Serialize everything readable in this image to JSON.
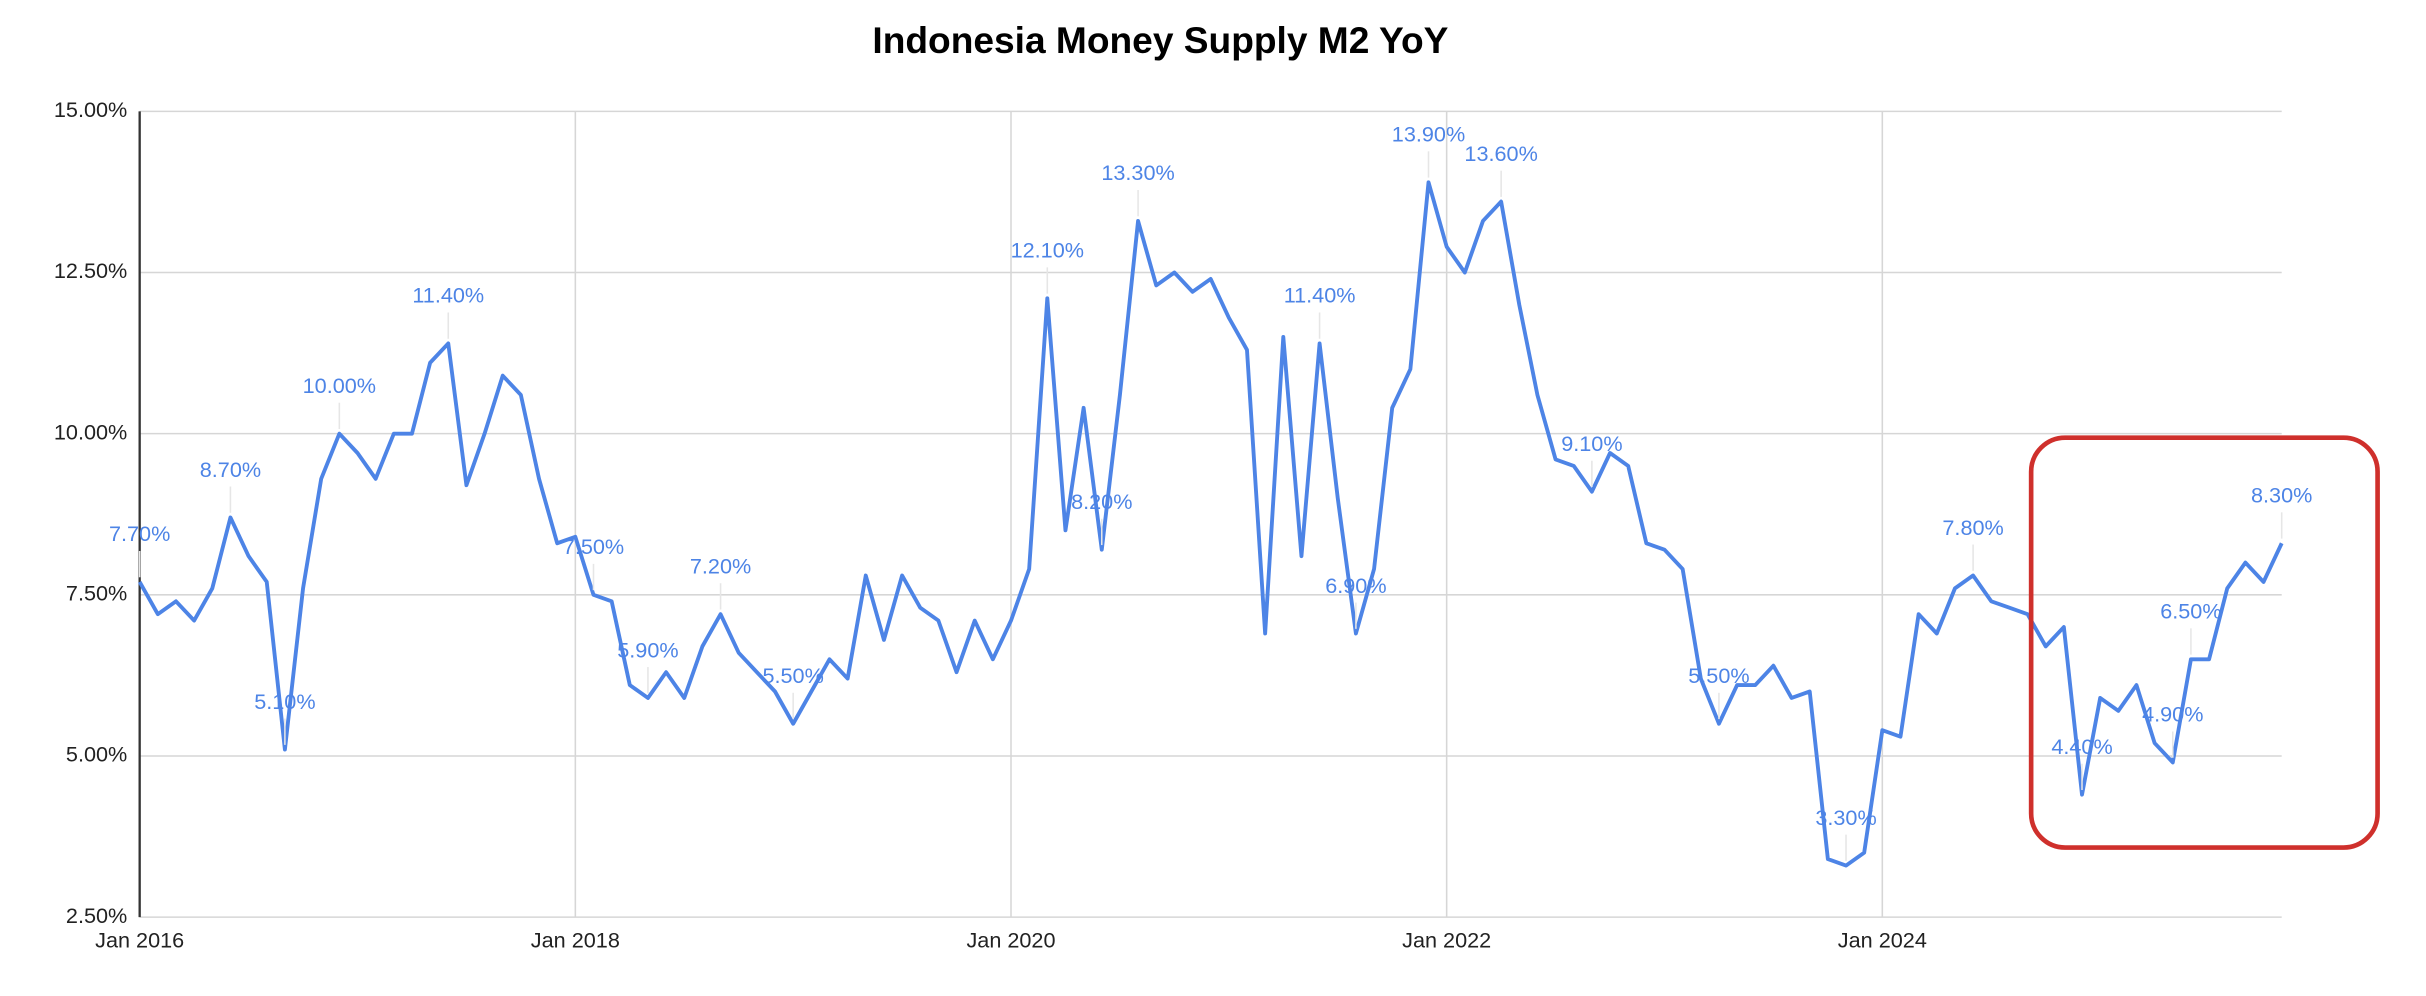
{
  "chart_data": {
    "type": "line",
    "title": "Indonesia Money Supply M2 YoY",
    "categories": [
      "Jan 2016",
      null,
      null,
      null,
      null,
      null,
      null,
      null,
      null,
      null,
      null,
      null,
      null,
      null,
      null,
      null,
      null,
      null,
      null,
      null,
      null,
      null,
      null,
      null,
      "Jan 2018",
      null,
      null,
      null,
      null,
      null,
      null,
      null,
      null,
      null,
      null,
      null,
      null,
      null,
      null,
      null,
      null,
      null,
      null,
      null,
      null,
      null,
      null,
      null,
      "Jan 2020",
      null,
      null,
      null,
      null,
      null,
      null,
      null,
      null,
      null,
      null,
      null,
      null,
      null,
      null,
      null,
      null,
      null,
      null,
      null,
      null,
      null,
      null,
      null,
      "Jan 2022",
      null,
      null,
      null,
      null,
      null,
      null,
      null,
      null,
      null,
      null,
      null,
      null,
      null,
      null,
      null,
      null,
      null,
      null,
      null,
      null,
      null,
      null,
      null,
      "Jan 2024",
      null,
      null,
      null,
      null,
      null,
      null,
      null,
      null,
      null,
      null,
      null,
      null,
      null,
      null,
      null,
      null,
      null,
      null,
      null,
      null,
      null,
      null
    ],
    "series": [
      {
        "name": "M2 YoY",
        "color": "#4d84e6",
        "values": [
          7.7,
          7.2,
          7.4,
          7.1,
          7.6,
          8.7,
          8.1,
          7.7,
          5.1,
          7.6,
          9.3,
          10.0,
          9.7,
          9.3,
          10.0,
          10.0,
          11.1,
          11.4,
          9.2,
          10.0,
          10.9,
          10.6,
          9.3,
          8.3,
          8.4,
          7.5,
          7.4,
          6.1,
          5.9,
          6.3,
          5.9,
          6.7,
          7.2,
          6.6,
          6.3,
          6.0,
          5.5,
          6.0,
          6.5,
          6.2,
          7.8,
          6.8,
          7.8,
          7.3,
          7.1,
          6.3,
          7.1,
          6.5,
          7.1,
          7.9,
          12.1,
          8.5,
          10.4,
          8.2,
          10.6,
          13.3,
          12.3,
          12.5,
          12.2,
          12.4,
          11.8,
          11.3,
          6.9,
          11.5,
          8.1,
          11.4,
          9.0,
          6.9,
          7.9,
          10.4,
          11.0,
          13.9,
          12.9,
          12.5,
          13.3,
          13.6,
          12.0,
          10.6,
          9.6,
          9.5,
          9.1,
          9.7,
          9.5,
          8.3,
          8.2,
          7.9,
          6.2,
          5.5,
          6.1,
          6.1,
          6.4,
          5.9,
          6.0,
          3.4,
          3.3,
          3.5,
          5.4,
          5.3,
          7.2,
          6.9,
          7.6,
          7.8,
          7.4,
          7.3,
          7.2,
          6.7,
          7.0,
          4.4,
          5.9,
          5.7,
          6.1,
          5.2,
          4.9,
          6.5,
          6.5,
          7.6,
          8.0,
          7.7,
          8.3
        ],
        "value_labels": [
          "7.70%",
          null,
          null,
          null,
          null,
          "8.70%",
          null,
          null,
          "5.10%",
          null,
          null,
          "10.00%",
          null,
          null,
          null,
          null,
          null,
          "11.40%",
          null,
          null,
          null,
          null,
          null,
          null,
          null,
          "7.50%",
          null,
          null,
          "5.90%",
          null,
          null,
          null,
          "7.20%",
          null,
          null,
          null,
          "5.50%",
          null,
          null,
          null,
          null,
          null,
          null,
          null,
          null,
          null,
          null,
          null,
          null,
          null,
          "12.10%",
          null,
          null,
          "8.20%",
          null,
          "13.30%",
          null,
          null,
          null,
          null,
          null,
          null,
          null,
          null,
          null,
          "11.40%",
          null,
          "6.90%",
          null,
          null,
          null,
          "13.90%",
          null,
          null,
          null,
          "13.60%",
          null,
          null,
          null,
          null,
          "9.10%",
          null,
          null,
          null,
          null,
          null,
          null,
          "5.50%",
          null,
          null,
          null,
          null,
          null,
          null,
          "3.30%",
          null,
          null,
          null,
          null,
          null,
          null,
          "7.80%",
          null,
          null,
          null,
          null,
          null,
          "4.40%",
          null,
          null,
          null,
          null,
          "4.90%",
          "6.50%",
          null,
          null,
          null,
          null,
          "8.30%"
        ]
      }
    ],
    "ylim": [
      2.5,
      15
    ],
    "yticks": [
      {
        "value": 2.5,
        "label": "2.50%"
      },
      {
        "value": 5,
        "label": "5.00%"
      },
      {
        "value": 7.5,
        "label": "7.50%"
      },
      {
        "value": 10,
        "label": "10.00%"
      },
      {
        "value": 12.5,
        "label": "12.50%"
      },
      {
        "value": 15,
        "label": "15.00%"
      }
    ],
    "grid": true
  }
}
